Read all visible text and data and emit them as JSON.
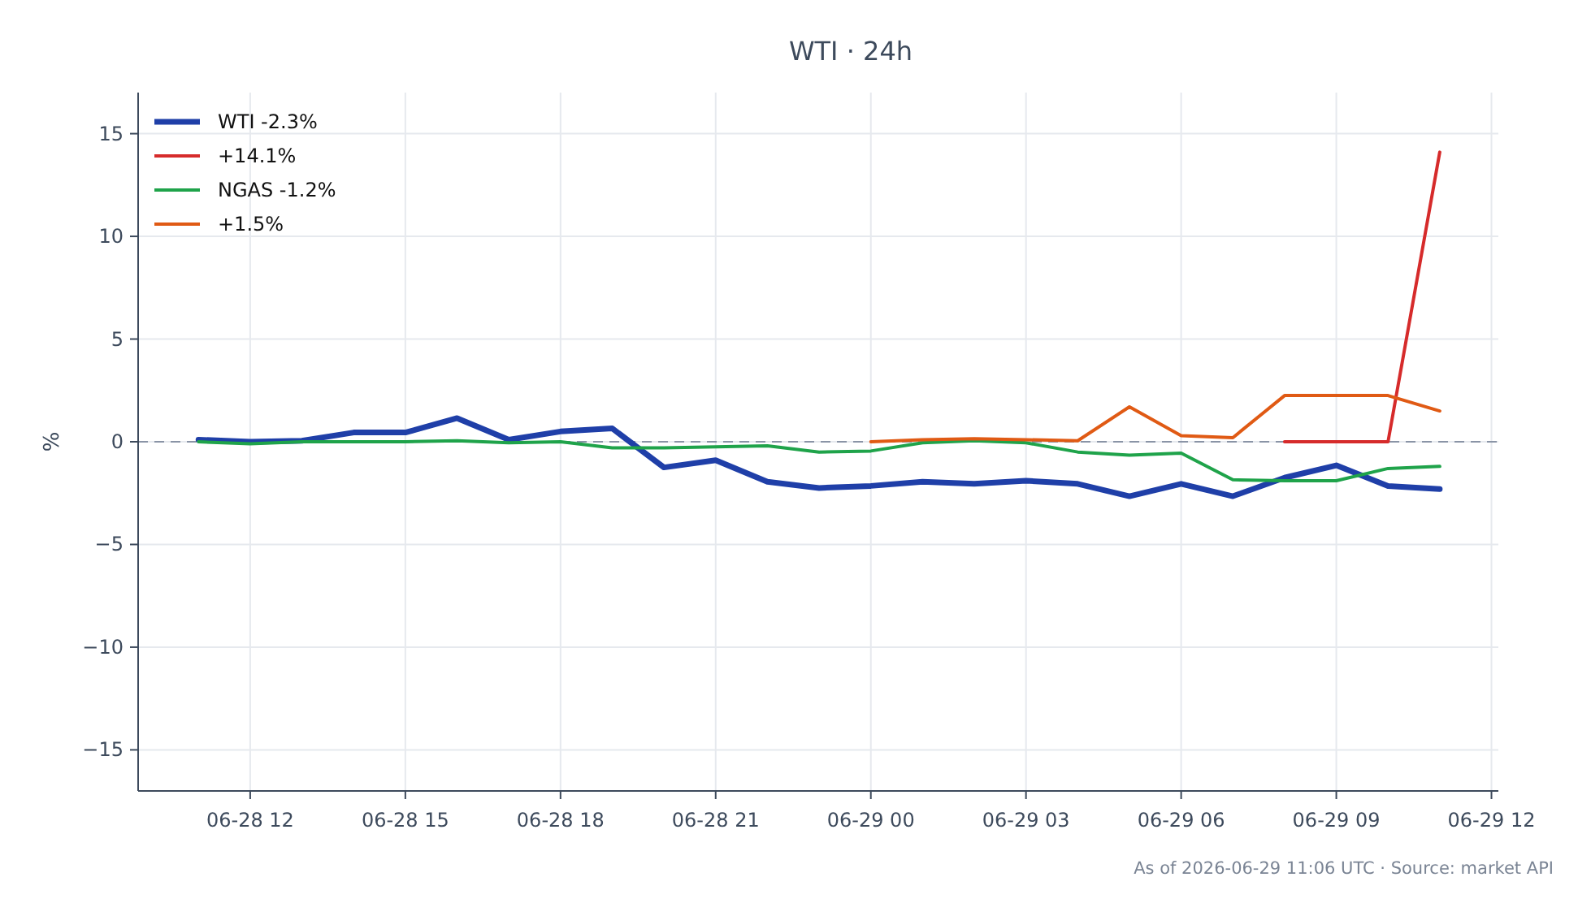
{
  "chart_data": {
    "type": "line",
    "title": "WTI · 24h",
    "ylabel": "%",
    "annotations": [
      "As of 2026-06-29 11:06 UTC · Source: market API"
    ],
    "x": [
      "2026-06-28T11:00",
      "2026-06-28T12:00",
      "2026-06-28T13:00",
      "2026-06-28T14:00",
      "2026-06-28T15:00",
      "2026-06-28T16:00",
      "2026-06-28T17:00",
      "2026-06-28T18:00",
      "2026-06-28T19:00",
      "2026-06-28T20:00",
      "2026-06-28T21:00",
      "2026-06-28T22:00",
      "2026-06-28T23:00",
      "2026-06-29T00:00",
      "2026-06-29T01:00",
      "2026-06-29T02:00",
      "2026-06-29T03:00",
      "2026-06-29T04:00",
      "2026-06-29T05:00",
      "2026-06-29T06:00",
      "2026-06-29T07:00",
      "2026-06-29T08:00",
      "2026-06-29T09:00",
      "2026-06-29T10:00",
      "2026-06-29T11:00"
    ],
    "series": [
      {
        "name": "WTI -2.3%",
        "color": "#1f3fa8",
        "values": [
          0.1,
          0.0,
          0.05,
          0.45,
          0.45,
          1.15,
          0.1,
          0.5,
          0.65,
          -1.25,
          -0.9,
          -1.95,
          -2.25,
          -2.15,
          -1.95,
          -2.05,
          -1.9,
          -2.05,
          -2.65,
          -2.05,
          -2.65,
          -1.75,
          -1.15,
          -2.15,
          -2.3
        ]
      },
      {
        "name": "+14.1%",
        "color": "#d62b2b",
        "x": [
          "2026-06-29T08:00",
          "2026-06-29T09:00",
          "2026-06-29T10:00",
          "2026-06-29T11:00"
        ],
        "values": [
          0,
          0,
          0,
          14.1
        ]
      },
      {
        "name": "NGAS -1.2%",
        "color": "#1fa34a",
        "values": [
          0.0,
          -0.1,
          0.0,
          0.0,
          0.0,
          0.05,
          -0.05,
          0.0,
          -0.3,
          -0.3,
          -0.25,
          -0.2,
          -0.5,
          -0.45,
          -0.05,
          0.05,
          -0.05,
          -0.5,
          -0.65,
          -0.55,
          -1.85,
          -1.9,
          -1.9,
          -1.3,
          -1.2
        ]
      },
      {
        "name": "+1.5%",
        "color": "#e05a14",
        "x": [
          "2026-06-29T00:00",
          "2026-06-29T01:00",
          "2026-06-29T02:00",
          "2026-06-29T03:00",
          "2026-06-29T04:00",
          "2026-06-29T05:00",
          "2026-06-29T06:00",
          "2026-06-29T07:00",
          "2026-06-29T08:00",
          "2026-06-29T09:00",
          "2026-06-29T10:00",
          "2026-06-29T11:00"
        ],
        "values": [
          0.0,
          0.1,
          0.15,
          0.1,
          0.05,
          1.7,
          0.3,
          0.2,
          2.25,
          2.25,
          2.25,
          1.5
        ]
      }
    ],
    "xlim": [
      "2026-06-28T09:50",
      "2026-06-29T12:08"
    ],
    "xticks": [
      {
        "value": "2026-06-28T12:00",
        "label": "06-28 12"
      },
      {
        "value": "2026-06-28T15:00",
        "label": "06-28 15"
      },
      {
        "value": "2026-06-28T18:00",
        "label": "06-28 18"
      },
      {
        "value": "2026-06-28T21:00",
        "label": "06-28 21"
      },
      {
        "value": "2026-06-29T00:00",
        "label": "06-29 00"
      },
      {
        "value": "2026-06-29T03:00",
        "label": "06-29 03"
      },
      {
        "value": "2026-06-29T06:00",
        "label": "06-29 06"
      },
      {
        "value": "2026-06-29T09:00",
        "label": "06-29 09"
      },
      {
        "value": "2026-06-29T12:00",
        "label": "06-29 12"
      }
    ],
    "ylim": [
      -17,
      17
    ],
    "yticks": [
      {
        "value": -15,
        "label": "−15"
      },
      {
        "value": -10,
        "label": "−10"
      },
      {
        "value": -5,
        "label": "−5"
      },
      0,
      5,
      10,
      15
    ],
    "ref_lines": [
      {
        "axis": "y",
        "value": 0,
        "color": "#8a94a6",
        "line_style": "dashed"
      }
    ],
    "grid": true,
    "legend": "top left",
    "marker": "none",
    "line_style": "solid"
  }
}
